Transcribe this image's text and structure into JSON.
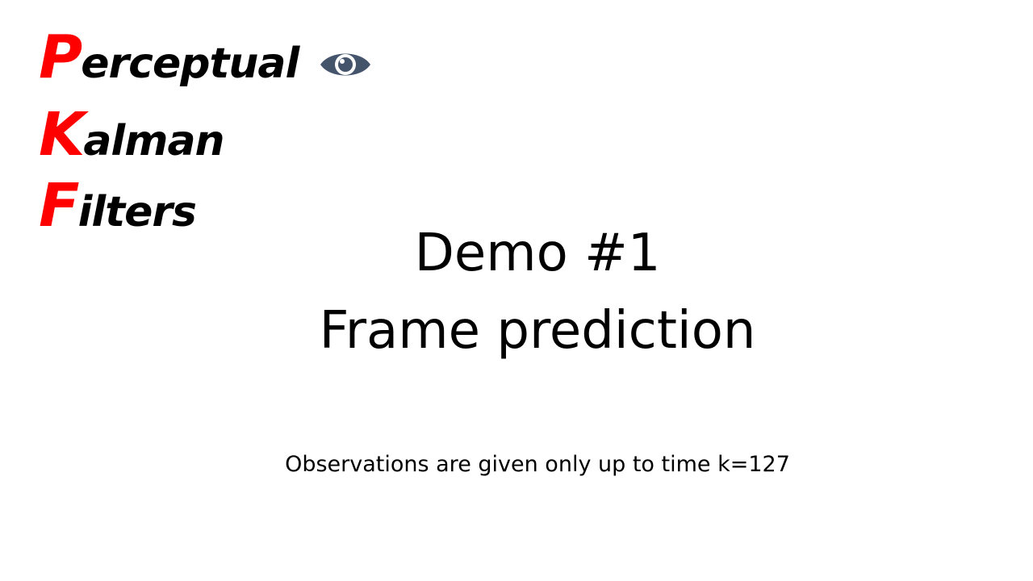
{
  "logo": {
    "line1": {
      "initial": "P",
      "rest": "erceptual"
    },
    "line2": {
      "initial": "K",
      "rest": "alman"
    },
    "line3": {
      "initial": "F",
      "rest": "ilters"
    },
    "icon": "eye-icon",
    "accent_color": "#ff0000",
    "icon_color": "#44546a"
  },
  "title": {
    "line1": "Demo #1",
    "line2": "Frame prediction"
  },
  "note": "Observations are given only up to time k=127"
}
